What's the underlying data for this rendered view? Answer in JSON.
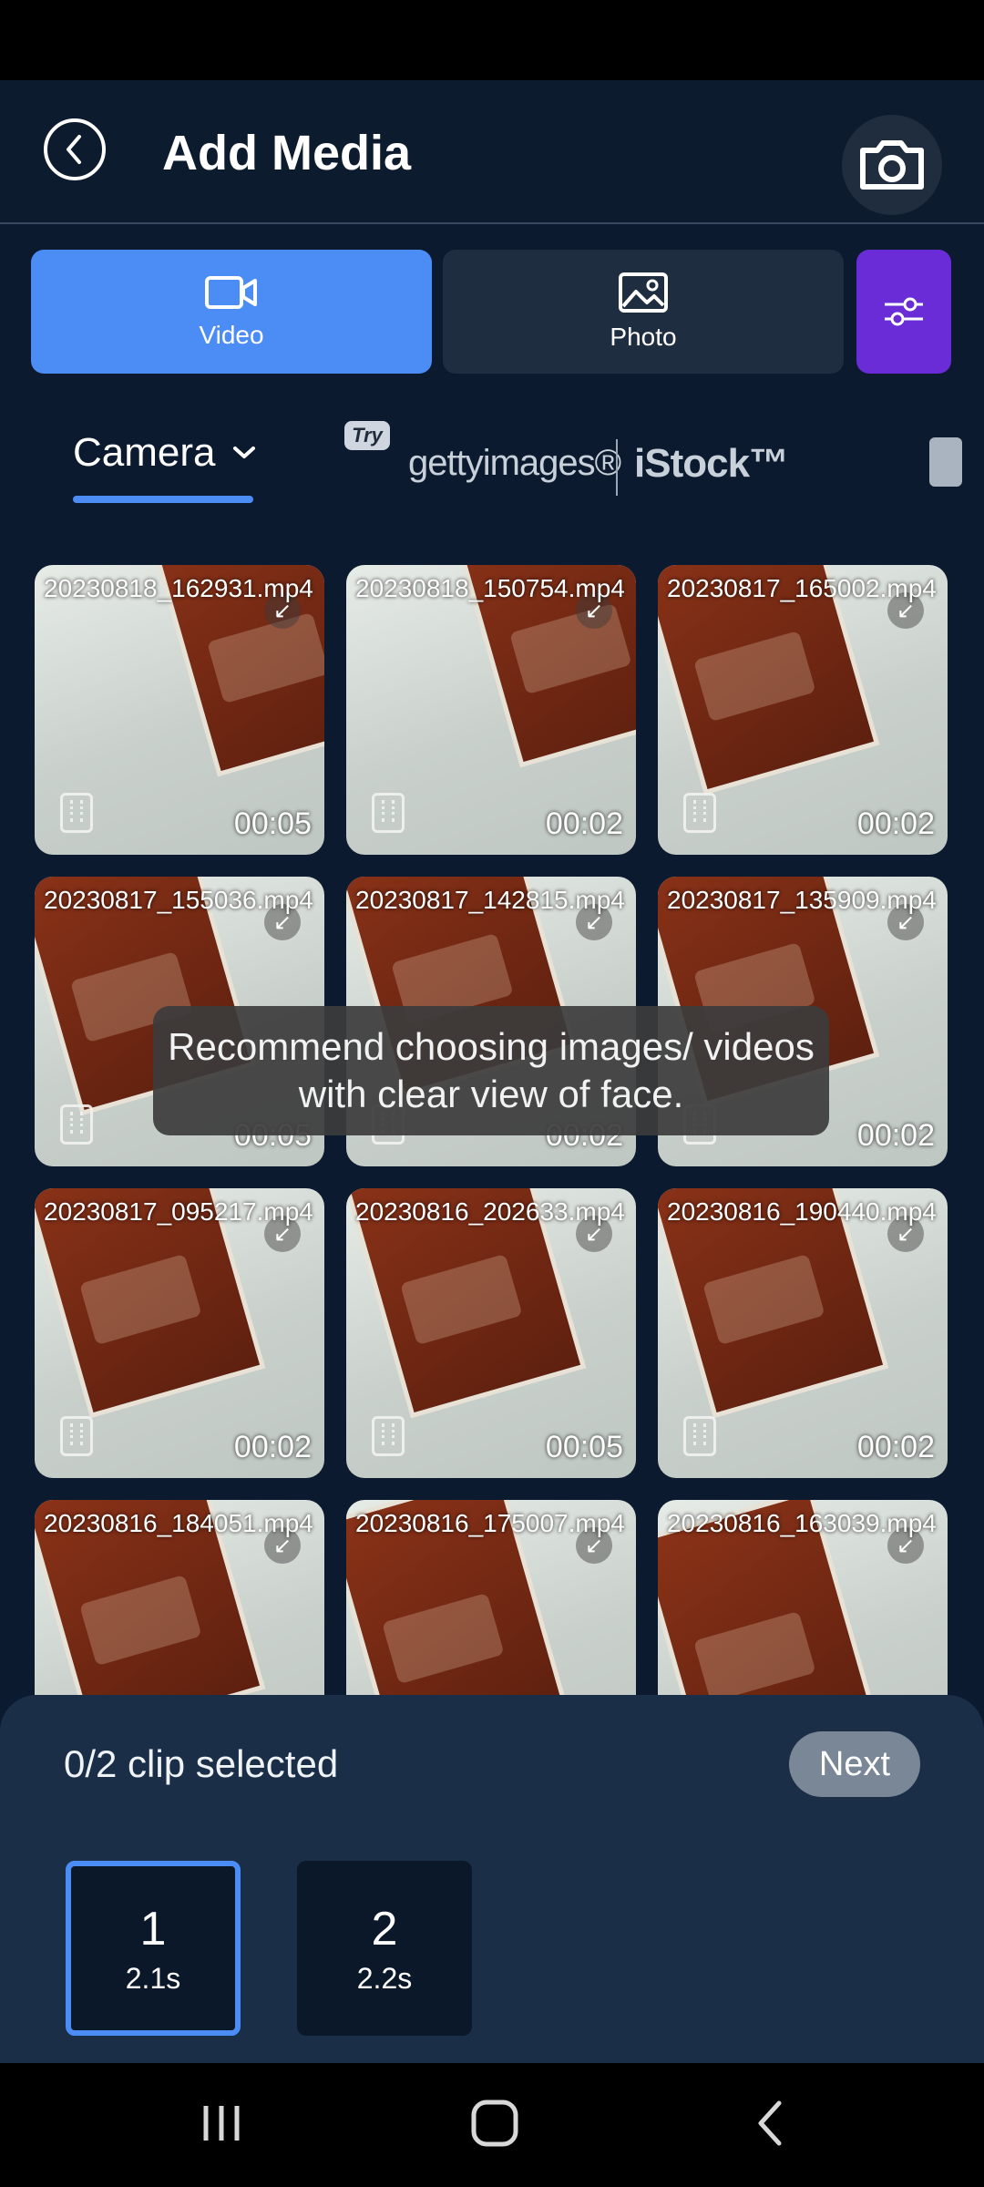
{
  "header": {
    "title": "Add Media"
  },
  "segments": {
    "video_label": "Video",
    "photo_label": "Photo"
  },
  "sources": {
    "camera": "Camera",
    "try": "Try",
    "getty": "gettyimages®",
    "istock": "iStock™"
  },
  "grid": {
    "items": [
      {
        "name": "20230818_162931.mp4",
        "duration": "00:05"
      },
      {
        "name": "20230818_150754.mp4",
        "duration": "00:02"
      },
      {
        "name": "20230817_165002.mp4",
        "duration": "00:02"
      },
      {
        "name": "20230817_155036.mp4",
        "duration": "00:05"
      },
      {
        "name": "20230817_142815.mp4",
        "duration": "00:02"
      },
      {
        "name": "20230817_135909.mp4",
        "duration": "00:02"
      },
      {
        "name": "20230817_095217.mp4",
        "duration": "00:02"
      },
      {
        "name": "20230816_202633.mp4",
        "duration": "00:05"
      },
      {
        "name": "20230816_190440.mp4",
        "duration": "00:02"
      },
      {
        "name": "20230816_184051.mp4",
        "duration": ""
      },
      {
        "name": "20230816_175007.mp4",
        "duration": ""
      },
      {
        "name": "20230816_163039.mp4",
        "duration": ""
      }
    ]
  },
  "toast": {
    "text": "Recommend choosing images/ videos with clear view of face."
  },
  "selection": {
    "status": "0/2 clip selected",
    "next_label": "Next",
    "clips": [
      {
        "number": "1",
        "length": "2.1s"
      },
      {
        "number": "2",
        "length": "2.2s"
      }
    ]
  },
  "colors": {
    "accent": "#4c8cf5",
    "filter": "#6a2cd6",
    "background": "#0b1a2e"
  }
}
